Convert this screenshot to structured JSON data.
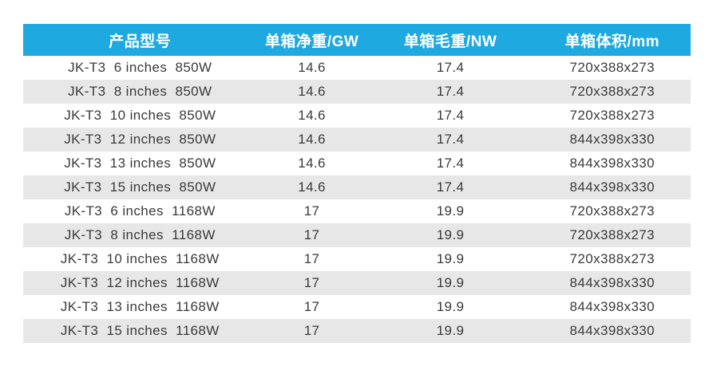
{
  "table": {
    "headers": [
      "产品型号",
      "单箱净重/GW",
      "单箱毛重/NW",
      "单箱体积/mm"
    ],
    "rows": [
      {
        "model": "JK-T3  6 inches  850W",
        "net_weight_gw": "14.6",
        "gross_weight_nw": "17.4",
        "volume_mm": "720x388x273"
      },
      {
        "model": "JK-T3  8 inches  850W",
        "net_weight_gw": "14.6",
        "gross_weight_nw": "17.4",
        "volume_mm": "720x388x273"
      },
      {
        "model": "JK-T3  10 inches  850W",
        "net_weight_gw": "14.6",
        "gross_weight_nw": "17.4",
        "volume_mm": "720x388x273"
      },
      {
        "model": "JK-T3  12 inches  850W",
        "net_weight_gw": "14.6",
        "gross_weight_nw": "17.4",
        "volume_mm": "844x398x330"
      },
      {
        "model": "JK-T3  13 inches  850W",
        "net_weight_gw": "14.6",
        "gross_weight_nw": "17.4",
        "volume_mm": "844x398x330"
      },
      {
        "model": "JK-T3  15 inches  850W",
        "net_weight_gw": "14.6",
        "gross_weight_nw": "17.4",
        "volume_mm": "844x398x330"
      },
      {
        "model": "JK-T3  6 inches  1168W",
        "net_weight_gw": "17",
        "gross_weight_nw": "19.9",
        "volume_mm": "720x388x273"
      },
      {
        "model": "JK-T3  8 inches  1168W",
        "net_weight_gw": "17",
        "gross_weight_nw": "19.9",
        "volume_mm": "720x388x273"
      },
      {
        "model": "JK-T3  10 inches  1168W",
        "net_weight_gw": "17",
        "gross_weight_nw": "19.9",
        "volume_mm": "720x388x273"
      },
      {
        "model": "JK-T3  12 inches  1168W",
        "net_weight_gw": "17",
        "gross_weight_nw": "19.9",
        "volume_mm": "844x398x330"
      },
      {
        "model": "JK-T3  13 inches  1168W",
        "net_weight_gw": "17",
        "gross_weight_nw": "19.9",
        "volume_mm": "844x398x330"
      },
      {
        "model": "JK-T3  15 inches  1168W",
        "net_weight_gw": "17",
        "gross_weight_nw": "19.9",
        "volume_mm": "844x398x330"
      }
    ],
    "colors": {
      "header_bg": "#1fa9e1",
      "header_text": "#ffffff",
      "stripe_bg": "#e7e7e7",
      "row_bg": "#ffffff",
      "text": "#3a3a3a"
    }
  }
}
